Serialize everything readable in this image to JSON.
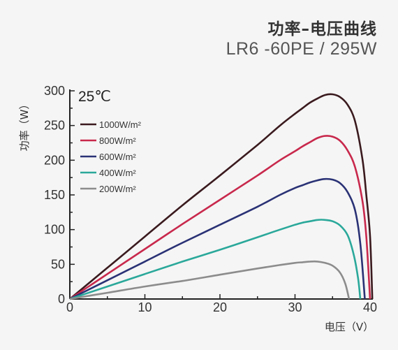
{
  "header": {
    "title": "功率–电压曲线",
    "subtitle": "LR6 -60PE / 295W"
  },
  "chart_data": {
    "type": "line",
    "temperature_label": "25℃",
    "xlabel": "电压（V）",
    "ylabel": "功率（W）",
    "xlim": [
      0,
      40
    ],
    "ylim": [
      0,
      300
    ],
    "x_ticks": [
      0,
      10,
      20,
      30,
      40
    ],
    "y_ticks": [
      0,
      50,
      100,
      150,
      200,
      250,
      300
    ],
    "grid": false,
    "legend_position": "top-left",
    "series": [
      {
        "name": "1000W/m²",
        "color": "#3a1a1e",
        "points": [
          [
            0,
            0
          ],
          [
            5,
            45
          ],
          [
            10,
            90
          ],
          [
            15,
            135
          ],
          [
            20,
            178
          ],
          [
            25,
            222
          ],
          [
            28,
            250
          ],
          [
            30,
            267
          ],
          [
            31,
            275
          ],
          [
            32,
            283
          ],
          [
            33,
            289
          ],
          [
            34,
            294
          ],
          [
            35,
            295
          ],
          [
            36,
            291
          ],
          [
            37,
            280
          ],
          [
            38,
            256
          ],
          [
            39,
            200
          ],
          [
            39.5,
            150
          ],
          [
            40,
            90
          ],
          [
            40.3,
            0
          ]
        ]
      },
      {
        "name": "800W/m²",
        "color": "#c8284c",
        "points": [
          [
            0,
            0
          ],
          [
            5,
            36
          ],
          [
            10,
            72
          ],
          [
            15,
            108
          ],
          [
            20,
            143
          ],
          [
            25,
            178
          ],
          [
            28,
            200
          ],
          [
            30,
            213
          ],
          [
            31,
            220
          ],
          [
            32,
            226
          ],
          [
            33,
            232
          ],
          [
            34,
            235
          ],
          [
            35,
            234
          ],
          [
            36,
            228
          ],
          [
            37,
            214
          ],
          [
            38,
            190
          ],
          [
            39,
            140
          ],
          [
            39.5,
            90
          ],
          [
            40,
            0
          ]
        ]
      },
      {
        "name": "600W/m²",
        "color": "#2a3275",
        "points": [
          [
            0,
            0
          ],
          [
            5,
            27
          ],
          [
            10,
            54
          ],
          [
            15,
            81
          ],
          [
            20,
            107
          ],
          [
            25,
            133
          ],
          [
            28,
            150
          ],
          [
            30,
            160
          ],
          [
            31,
            164
          ],
          [
            32,
            168
          ],
          [
            33,
            171
          ],
          [
            34,
            173
          ],
          [
            35,
            172
          ],
          [
            36,
            167
          ],
          [
            37,
            154
          ],
          [
            38,
            128
          ],
          [
            38.7,
            80
          ],
          [
            39.3,
            0
          ]
        ]
      },
      {
        "name": "400W/m²",
        "color": "#2aa89a",
        "points": [
          [
            0,
            0
          ],
          [
            5,
            18
          ],
          [
            10,
            36
          ],
          [
            15,
            54
          ],
          [
            20,
            71
          ],
          [
            25,
            89
          ],
          [
            28,
            100
          ],
          [
            30,
            107
          ],
          [
            31,
            110
          ],
          [
            32,
            112
          ],
          [
            33,
            114
          ],
          [
            34,
            114
          ],
          [
            35,
            112
          ],
          [
            36,
            106
          ],
          [
            37,
            92
          ],
          [
            37.8,
            65
          ],
          [
            38.4,
            30
          ],
          [
            38.7,
            0
          ]
        ]
      },
      {
        "name": "200W/m²",
        "color": "#8c8c8c",
        "points": [
          [
            0,
            0
          ],
          [
            5,
            9
          ],
          [
            10,
            18
          ],
          [
            15,
            26
          ],
          [
            20,
            35
          ],
          [
            25,
            44
          ],
          [
            28,
            49
          ],
          [
            30,
            52
          ],
          [
            31,
            53
          ],
          [
            32,
            54
          ],
          [
            33,
            54
          ],
          [
            34,
            52
          ],
          [
            35,
            48
          ],
          [
            36,
            38
          ],
          [
            36.7,
            22
          ],
          [
            37.2,
            0
          ]
        ]
      }
    ]
  }
}
